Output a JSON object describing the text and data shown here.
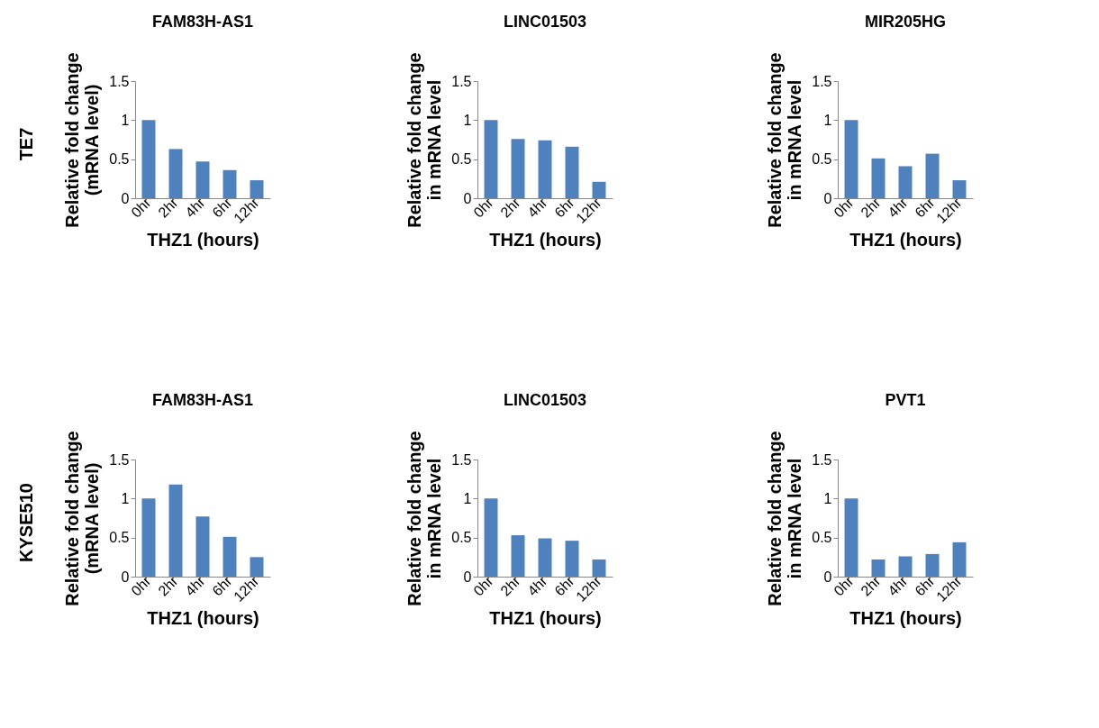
{
  "chart_data": [
    {
      "type": "bar",
      "title": "FAM83H-AS1",
      "xlabel": "THZ1 (hours)",
      "ylabel": "Relative fold change\n(mRNA level)",
      "annotations": [
        "TE7"
      ],
      "categories": [
        "0hr",
        "2hr",
        "4hr",
        "6hr",
        "12hr"
      ],
      "values": [
        1,
        0.63,
        0.47,
        0.36,
        0.23
      ],
      "color": "#4f81bd",
      "ylim": [
        0,
        1.5
      ],
      "yticks": [
        0,
        0.5,
        1,
        1.5
      ],
      "grid": false
    },
    {
      "type": "bar",
      "title": "LINC01503",
      "xlabel": "THZ1 (hours)",
      "ylabel": "Relative fold change\nin mRNA level",
      "categories": [
        "0hr",
        "2hr",
        "4hr",
        "6hr",
        "12hr"
      ],
      "values": [
        1,
        0.76,
        0.74,
        0.66,
        0.21
      ],
      "color": "#4f81bd",
      "ylim": [
        0,
        1.5
      ],
      "yticks": [
        0,
        0.5,
        1,
        1.5
      ],
      "grid": false
    },
    {
      "type": "bar",
      "title": "MIR205HG",
      "xlabel": "THZ1 (hours)",
      "ylabel": "Relative fold change\nin mRNA level",
      "categories": [
        "0hr",
        "2hr",
        "4hr",
        "6hr",
        "12hr"
      ],
      "values": [
        1,
        0.51,
        0.41,
        0.57,
        0.23
      ],
      "color": "#4f81bd",
      "ylim": [
        0,
        1.5
      ],
      "yticks": [
        0,
        0.5,
        1,
        1.5
      ],
      "grid": false
    },
    {
      "type": "bar",
      "title": "FAM83H-AS1",
      "xlabel": "THZ1 (hours)",
      "ylabel": "Relative fold change\n(mRNA level)",
      "annotations": [
        "KYSE510"
      ],
      "categories": [
        "0hr",
        "2hr",
        "4hr",
        "6hr",
        "12hr"
      ],
      "values": [
        1,
        1.18,
        0.77,
        0.51,
        0.25
      ],
      "color": "#4f81bd",
      "ylim": [
        0,
        1.5
      ],
      "yticks": [
        0,
        0.5,
        1,
        1.5
      ],
      "grid": false
    },
    {
      "type": "bar",
      "title": "LINC01503",
      "xlabel": "THZ1 (hours)",
      "ylabel": "Relative fold change\nin mRNA level",
      "categories": [
        "0hr",
        "2hr",
        "4hr",
        "6hr",
        "12hr"
      ],
      "values": [
        1,
        0.53,
        0.49,
        0.46,
        0.22
      ],
      "color": "#4f81bd",
      "ylim": [
        0,
        1.5
      ],
      "yticks": [
        0,
        0.5,
        1,
        1.5
      ],
      "grid": false
    },
    {
      "type": "bar",
      "title": "PVT1",
      "xlabel": "THZ1 (hours)",
      "ylabel": "Relative fold change\nin mRNA level",
      "categories": [
        "0hr",
        "2hr",
        "4hr",
        "6hr",
        "12hr"
      ],
      "values": [
        1,
        0.22,
        0.26,
        0.29,
        0.44
      ],
      "color": "#4f81bd",
      "ylim": [
        0,
        1.5
      ],
      "yticks": [
        0,
        0.5,
        1,
        1.5
      ],
      "grid": false
    }
  ]
}
